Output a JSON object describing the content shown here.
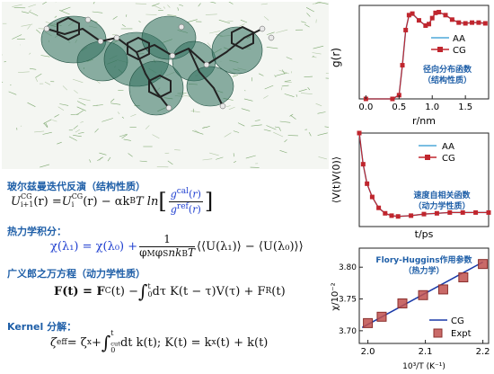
{
  "sections": {
    "boltzmann": {
      "title": "玻尔兹曼迭代反演（结构性质）"
    },
    "thermo": {
      "title": "热力学积分："
    },
    "langevin": {
      "title": "广义郎之万方程（动力学性质）"
    },
    "kernel": {
      "title": "Kernel 分解："
    }
  },
  "equations": {
    "U_lhs": "U",
    "U_sup1": "CG",
    "U_sub1": "i+1",
    "U_r": "(r) = ",
    "U_mid": "(r) − αk",
    "U_T": "T ln",
    "g_num": "g",
    "g_num_sup": "cal",
    "g_den_sup": "ref",
    "chi_lhs": "χ(λ₁) = χ(λ₀) +",
    "chi_one": "1",
    "chi_den": "φ",
    "chi_rhs": "⟨⟨U(λ₁)⟩ − ⟨U(λ₀)⟩⟩",
    "F_lhs": "F(t) = F",
    "F_c": "C",
    "F_mid": "(t) −",
    "F_int": "dτ K(t − τ)V(τ) + F",
    "F_r": "R",
    "F_end": "(t)",
    "zeta_lhs": "ζ",
    "zeta_eff": "eff",
    "zeta_eq": " = ζ",
    "zeta_x": "x",
    "zeta_plus": " + ",
    "zeta_int": "dt k(t); K(t) = k",
    "zeta_end": "(t) + k(t)",
    "t_cut": "t",
    "cut": "cut",
    "zero": "0",
    "t_upper": "t"
  },
  "chart_data": [
    {
      "type": "line",
      "title": "径向分布函数（结构性质）",
      "xlabel": "r/nm",
      "ylabel": "g(r)",
      "xlim": [
        -0.1,
        1.85
      ],
      "xticks": [
        "0.0",
        "0.5",
        "1.0",
        "1.5"
      ],
      "xtick_values": [
        0.0,
        0.5,
        1.0,
        1.5
      ],
      "ylim": [
        0,
        1.25
      ],
      "legend": "top-right",
      "series": [
        {
          "name": "AA",
          "color": "#4fa8d8",
          "x": [
            0.0,
            0.4,
            0.5,
            0.55,
            0.6,
            0.65,
            0.7,
            0.8,
            0.9,
            0.95,
            1.0,
            1.05,
            1.1,
            1.2,
            1.3,
            1.4,
            1.5,
            1.6,
            1.7,
            1.8
          ],
          "y": [
            0,
            0,
            0.05,
            0.45,
            0.92,
            1.12,
            1.14,
            1.05,
            0.98,
            1.0,
            1.08,
            1.15,
            1.16,
            1.12,
            1.06,
            1.02,
            1.01,
            1.02,
            1.02,
            1.01
          ]
        },
        {
          "name": "CG",
          "color": "#c0262e",
          "x": [
            0.0,
            0.4,
            0.5,
            0.55,
            0.6,
            0.65,
            0.7,
            0.8,
            0.9,
            0.95,
            1.0,
            1.05,
            1.1,
            1.2,
            1.3,
            1.4,
            1.5,
            1.6,
            1.7,
            1.8
          ],
          "y": [
            0,
            0,
            0.05,
            0.45,
            0.92,
            1.12,
            1.14,
            1.05,
            0.98,
            1.0,
            1.08,
            1.15,
            1.16,
            1.12,
            1.06,
            1.02,
            1.01,
            1.02,
            1.02,
            1.01
          ]
        }
      ]
    },
    {
      "type": "line",
      "title": "速度自相关函数（动力学性质）",
      "xlabel": "t/ps",
      "ylabel": "⟨V(t)V(0)⟩",
      "xlim": [
        0,
        10
      ],
      "ylim": [
        -0.2,
        1.0
      ],
      "legend": "top-right",
      "series": [
        {
          "name": "AA",
          "color": "#4fa8d8",
          "x": [
            0,
            0.3,
            0.6,
            1.0,
            1.5,
            2,
            2.5,
            3,
            4,
            5,
            6,
            7,
            8,
            9,
            10
          ],
          "y": [
            1.0,
            0.6,
            0.35,
            0.18,
            0.04,
            -0.03,
            -0.06,
            -0.07,
            -0.06,
            -0.04,
            -0.03,
            -0.02,
            -0.02,
            -0.02,
            -0.02
          ]
        },
        {
          "name": "CG",
          "color": "#c0262e",
          "x": [
            0,
            0.3,
            0.6,
            1.0,
            1.5,
            2,
            2.5,
            3,
            4,
            5,
            6,
            7,
            8,
            9,
            10
          ],
          "y": [
            1.0,
            0.6,
            0.35,
            0.18,
            0.04,
            -0.03,
            -0.06,
            -0.07,
            -0.06,
            -0.04,
            -0.03,
            -0.02,
            -0.02,
            -0.02,
            -0.02
          ]
        }
      ]
    },
    {
      "type": "scatter",
      "title": "Flory-Huggins作用参数（热力学）",
      "xlabel": "10³/T (K⁻¹)",
      "ylabel": "χ/10⁻²",
      "xlim": [
        1.985,
        2.21
      ],
      "ylim": [
        3.68,
        3.83
      ],
      "xticks": [
        "2.0",
        "2.1",
        "2.2"
      ],
      "xtick_values": [
        2.0,
        2.1,
        2.2
      ],
      "yticks": [
        "3.70",
        "3.75",
        "3.80"
      ],
      "ytick_values": [
        3.7,
        3.75,
        3.8
      ],
      "legend": "bottom-right",
      "series": [
        {
          "name": "CG",
          "color": "#1a3aa8",
          "x": [
            1.99,
            2.2
          ],
          "y": [
            3.705,
            3.808
          ]
        },
        {
          "name": "Expt",
          "color": "#c0504d",
          "x": [
            2.0,
            2.024,
            2.06,
            2.096,
            2.131,
            2.166,
            2.2
          ],
          "y": [
            3.712,
            3.722,
            3.743,
            3.756,
            3.765,
            3.784,
            3.805
          ]
        }
      ]
    }
  ]
}
